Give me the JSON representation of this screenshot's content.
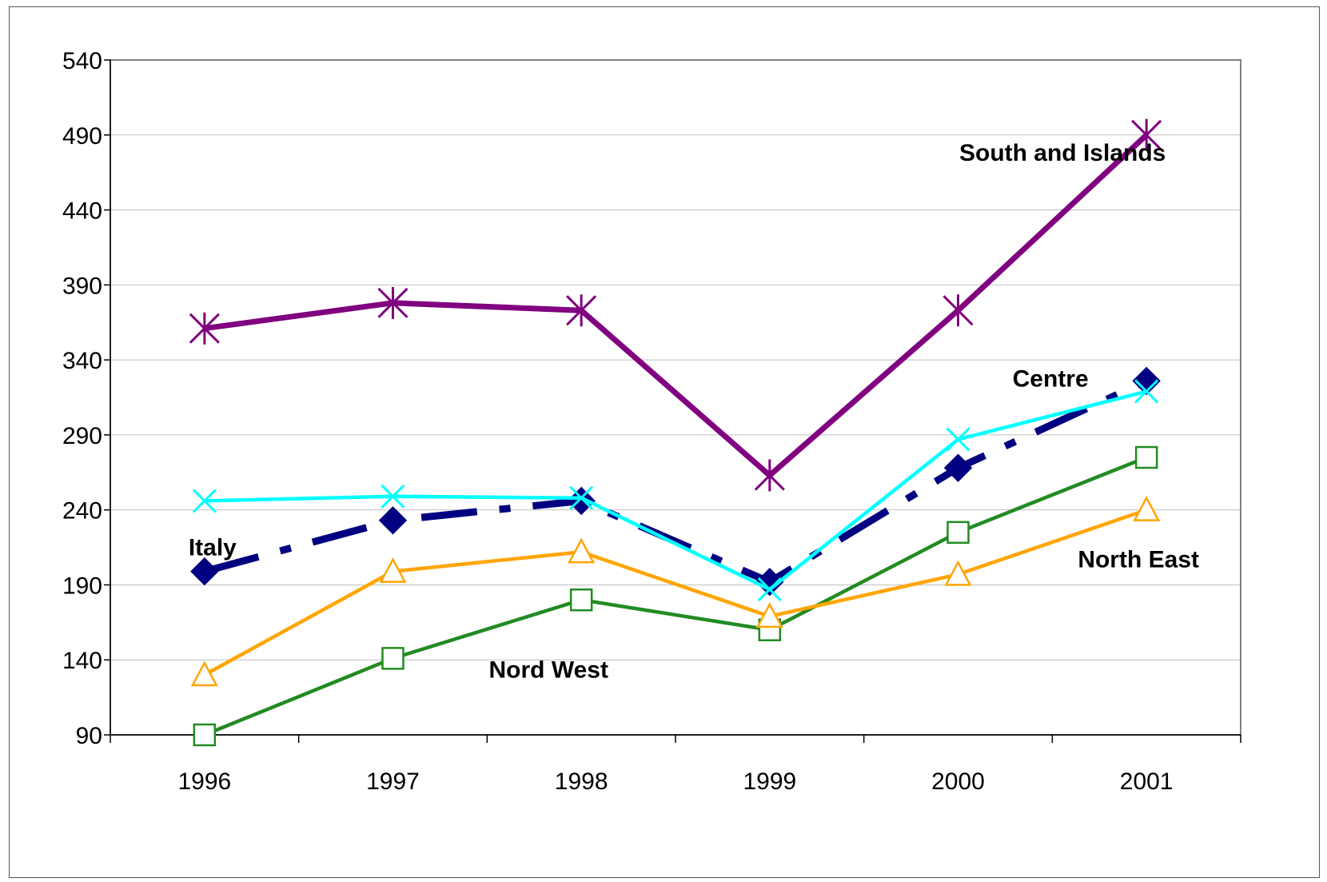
{
  "chart_data": {
    "type": "line",
    "title": "",
    "xlabel": "",
    "ylabel": "",
    "categories": [
      "1996",
      "1997",
      "1998",
      "1999",
      "2000",
      "2001"
    ],
    "ylim": [
      90,
      540
    ],
    "yticks": [
      90,
      140,
      190,
      240,
      290,
      340,
      390,
      440,
      490,
      540
    ],
    "grid": true,
    "legend": "none",
    "series": [
      {
        "name": "South and Islands",
        "values": [
          361,
          378,
          373,
          263,
          373,
          490
        ],
        "color": "#800080",
        "marker": "asterisk",
        "dash": "solid"
      },
      {
        "name": "Centre",
        "values": [
          246,
          249,
          248,
          187,
          287,
          319
        ],
        "color": "#00FFFF",
        "marker": "x",
        "dash": "solid"
      },
      {
        "name": "Italy",
        "values": [
          199,
          233,
          246,
          192,
          268,
          326
        ],
        "color": "#000080",
        "marker": "diamond",
        "dash": "dashdot"
      },
      {
        "name": "North East",
        "values": [
          130,
          199,
          212,
          169,
          197,
          240
        ],
        "color": "#FFA500",
        "marker": "triangle",
        "dash": "solid"
      },
      {
        "name": "Nord West",
        "values": [
          90,
          141,
          180,
          160,
          225,
          275
        ],
        "color": "#228B22",
        "marker": "square",
        "dash": "solid"
      }
    ]
  }
}
